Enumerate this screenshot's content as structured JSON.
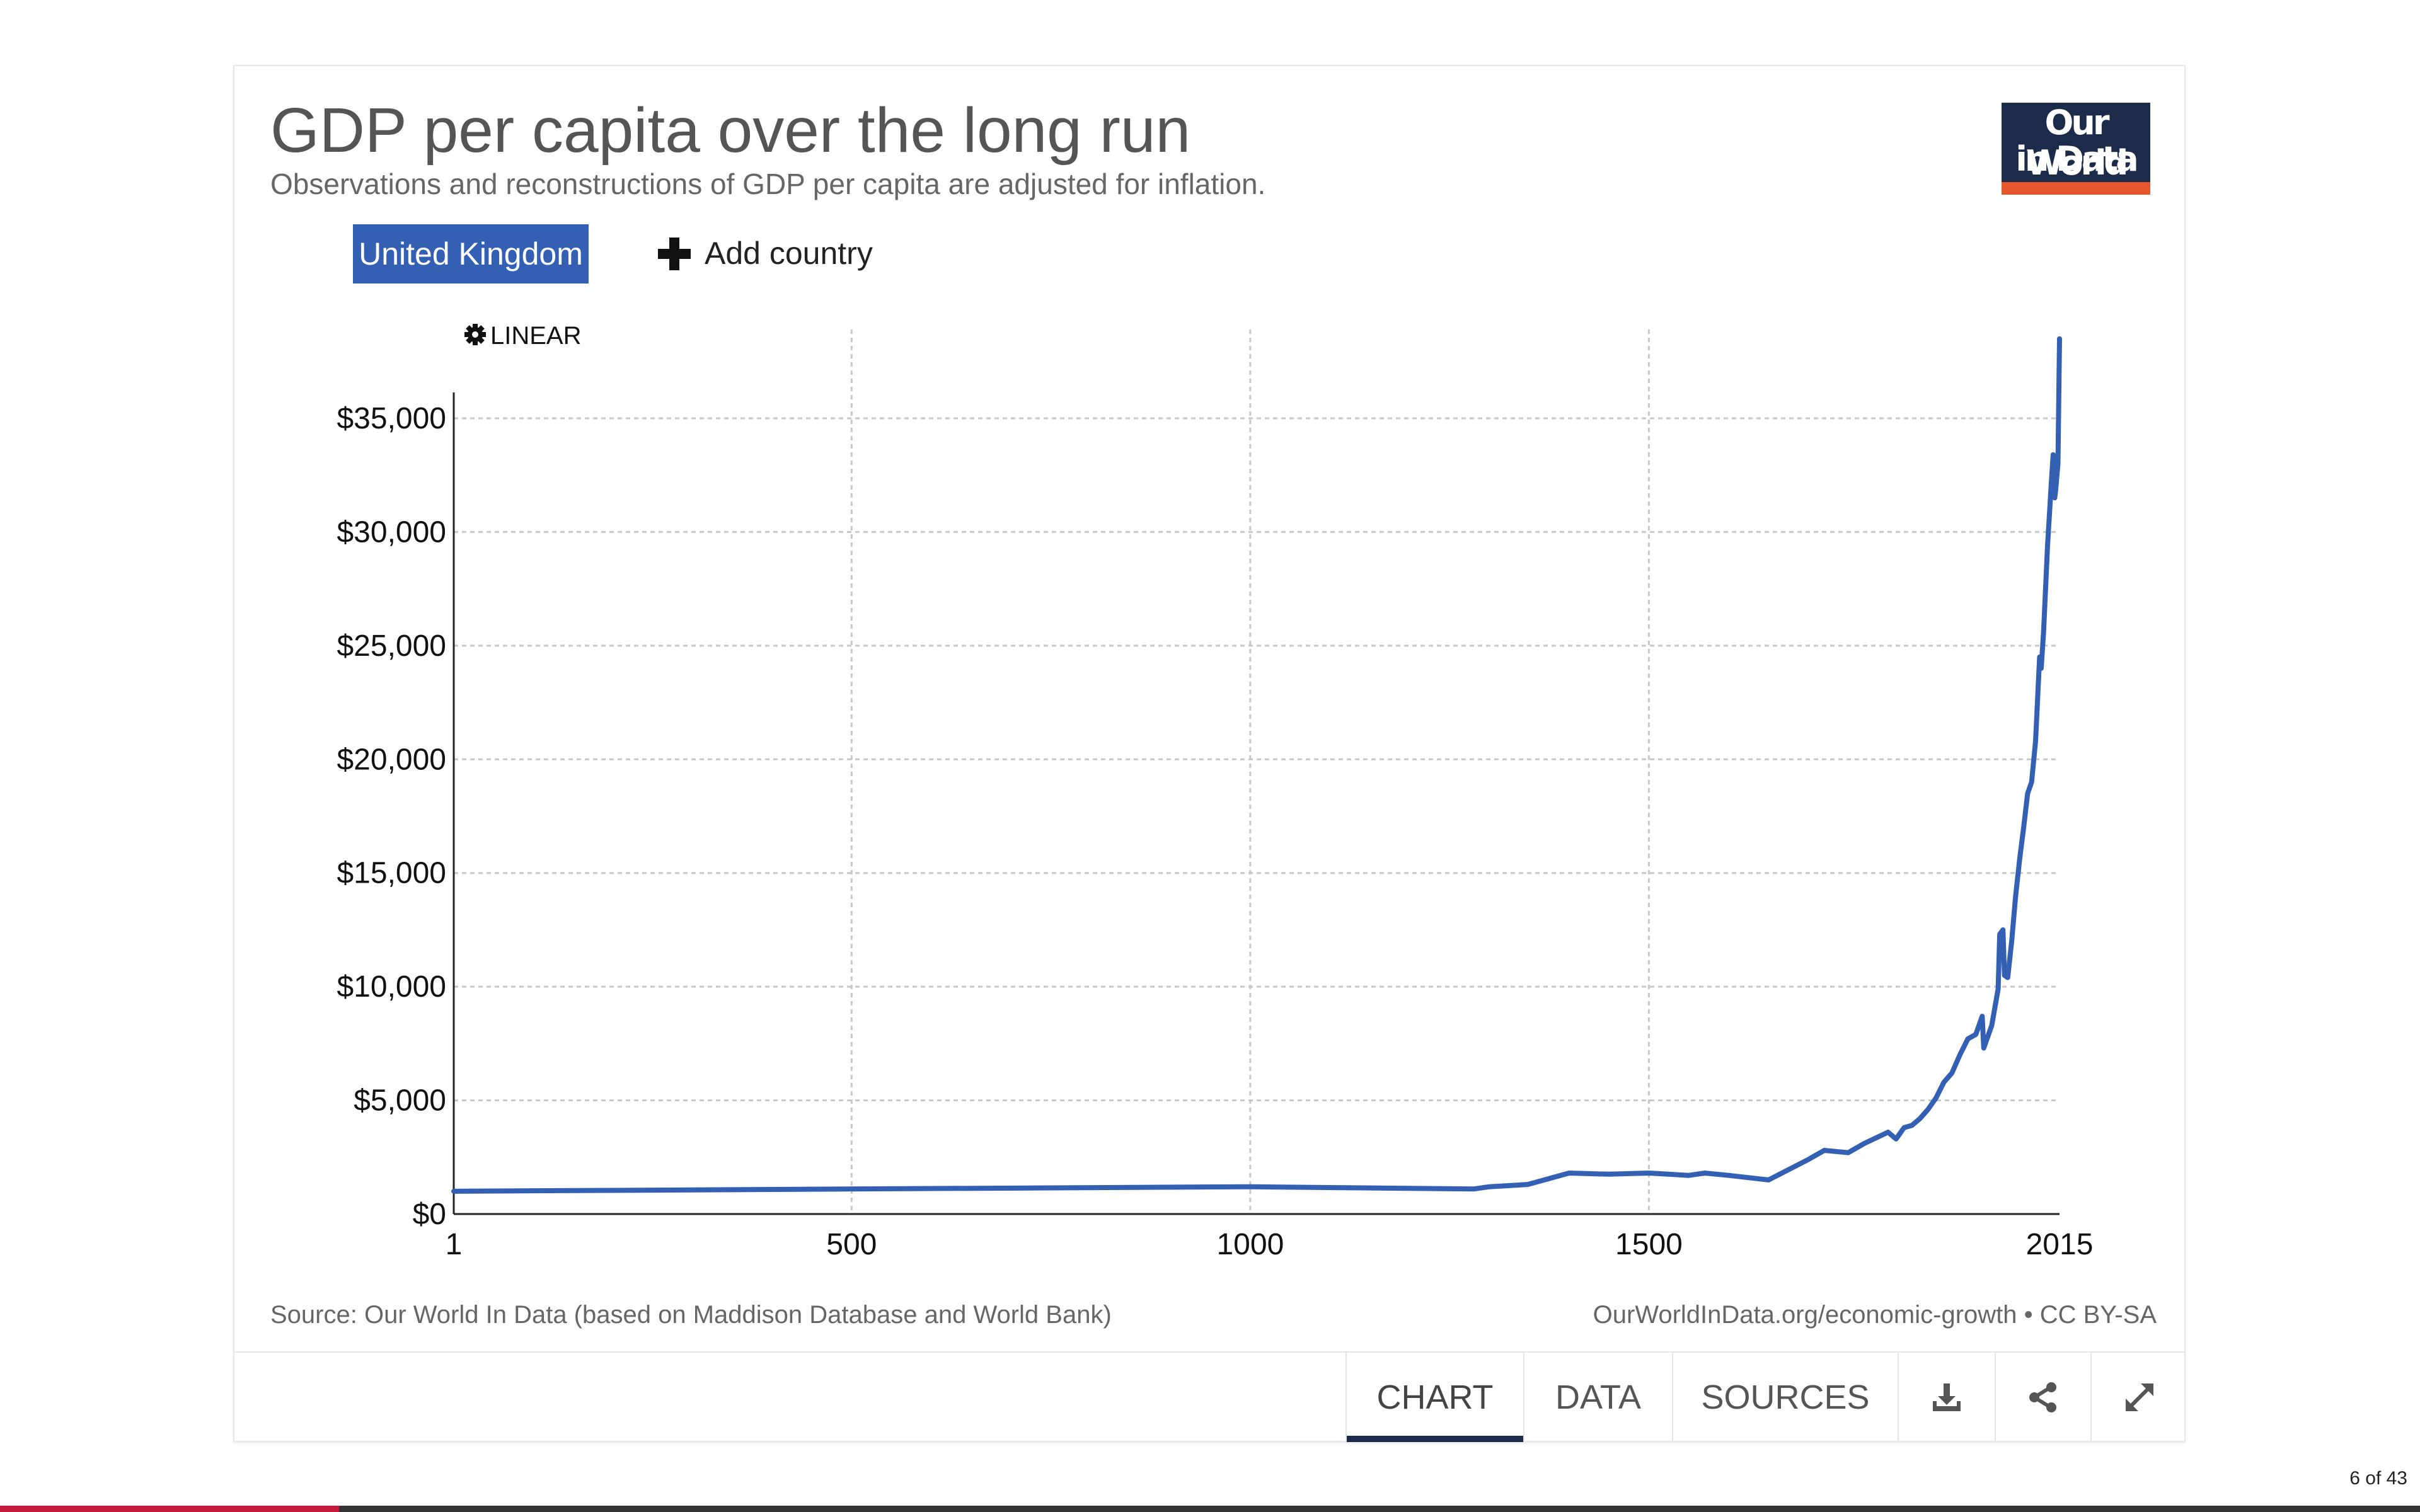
{
  "header": {
    "title": "GDP per capita over the long run",
    "subtitle": "Observations and reconstructions of GDP per capita are adjusted for inflation."
  },
  "logo": {
    "line1": "Our World",
    "line2": "in Data"
  },
  "controls": {
    "selected_country": "United Kingdom",
    "add_country_label": "Add country",
    "scale_toggle_label": "LINEAR"
  },
  "footer": {
    "source": "Source: Our World In Data (based on Maddison Database and World Bank)",
    "license": "OurWorldInData.org/economic-growth • CC BY-SA"
  },
  "tabs": {
    "chart": "CHART",
    "data": "DATA",
    "sources": "SOURCES"
  },
  "icons": {
    "download": "download-icon",
    "share": "share-icon",
    "expand": "expand-icon",
    "settings": "gear-icon",
    "add": "plus-icon"
  },
  "colors": {
    "series": "#3360b3",
    "brand_navy": "#1c2b4a",
    "brand_orange": "#e5562d",
    "progress": "#c3193a"
  },
  "slideshow": {
    "counter": "6 of 43",
    "progress": 0.14
  },
  "chart_data": {
    "type": "line",
    "title": "GDP per capita over the long run",
    "subtitle": "Observations and reconstructions of GDP per capita are adjusted for inflation.",
    "xlabel": "",
    "ylabel": "",
    "scale": "linear",
    "grid": true,
    "xlim": [
      1,
      2015
    ],
    "ylim": [
      0,
      38500
    ],
    "x_ticks": [
      1,
      500,
      1000,
      1500,
      2015
    ],
    "x_tick_labels": [
      "1",
      "500",
      "1000",
      "1500",
      "2015"
    ],
    "y_ticks": [
      0,
      5000,
      10000,
      15000,
      20000,
      25000,
      30000,
      35000
    ],
    "y_tick_labels": [
      "$0",
      "$5,000",
      "$10,000",
      "$15,000",
      "$20,000",
      "$25,000",
      "$30,000",
      "$35,000"
    ],
    "series": [
      {
        "name": "United Kingdom",
        "x": [
          1,
          500,
          1000,
          1280,
          1300,
          1348,
          1400,
          1450,
          1500,
          1550,
          1570,
          1600,
          1650,
          1700,
          1720,
          1750,
          1770,
          1800,
          1810,
          1820,
          1830,
          1840,
          1850,
          1860,
          1870,
          1880,
          1890,
          1900,
          1910,
          1913,
          1918,
          1920,
          1930,
          1938,
          1940,
          1944,
          1946,
          1950,
          1955,
          1960,
          1965,
          1970,
          1975,
          1980,
          1985,
          1990,
          1992,
          1995,
          2000,
          2005,
          2007,
          2009,
          2010,
          2013,
          2015
        ],
        "y": [
          1000,
          1100,
          1200,
          1100,
          1200,
          1300,
          1800,
          1750,
          1800,
          1700,
          1800,
          1700,
          1500,
          2400,
          2800,
          2700,
          3100,
          3600,
          3300,
          3800,
          3900,
          4200,
          4600,
          5100,
          5800,
          6200,
          7000,
          7700,
          7900,
          8200,
          8700,
          7300,
          8300,
          9900,
          12300,
          12500,
          10500,
          10400,
          12000,
          14000,
          15600,
          17000,
          18500,
          19000,
          20800,
          24500,
          24000,
          25600,
          29400,
          32300,
          33400,
          31500,
          31800,
          33000,
          38500
        ]
      }
    ]
  }
}
